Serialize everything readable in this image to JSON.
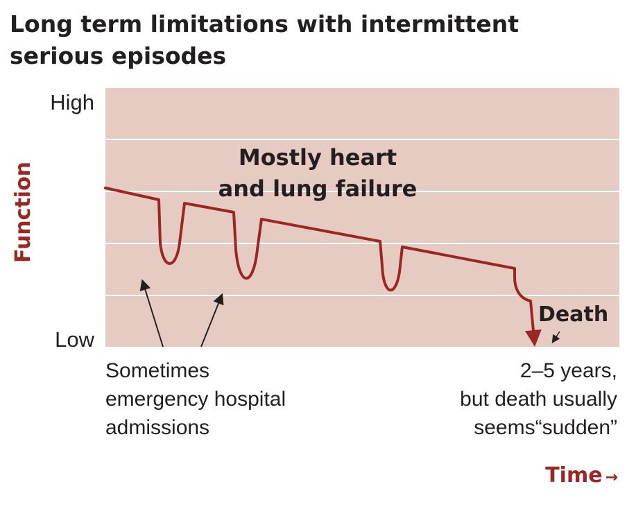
{
  "title": "Long term limitations with intermittent serious episodes",
  "colors": {
    "plot_background": "#e6cbc2",
    "trajectory": "#9c2722",
    "grid": "#ffffff",
    "text": "#231f20",
    "axis_label": "#9c2722"
  },
  "chart_data": {
    "type": "line",
    "title": "Long term limitations with intermittent serious episodes",
    "ylabel": "Function",
    "xlabel": "Time",
    "y_ticks": [
      "High",
      "Low"
    ],
    "grid": true,
    "series": [
      {
        "name": "",
        "points": [
          [
            0,
            0.77
          ],
          [
            0.1,
            0.72
          ],
          [
            0.12,
            0.35
          ],
          [
            0.15,
            0.7
          ],
          [
            0.25,
            0.65
          ],
          [
            0.27,
            0.28
          ],
          [
            0.3,
            0.62
          ],
          [
            0.53,
            0.5
          ],
          [
            0.55,
            0.23
          ],
          [
            0.58,
            0.48
          ],
          [
            0.79,
            0.35
          ],
          [
            0.82,
            0.18
          ],
          [
            0.85,
            0.0
          ]
        ]
      }
    ],
    "annotations": {
      "condition": "Mostly heart and lung failure",
      "death": "Death",
      "admissions": "Sometimes emergency hospital admissions",
      "duration": "2–5 years, but death usually seems“sudden”"
    }
  },
  "labels": {
    "condition_line1": "Mostly heart",
    "condition_line2": "and lung failure",
    "death": "Death",
    "y_high": "High",
    "y_low": "Low",
    "y_axis": "Function",
    "x_axis": "Time",
    "x_arrow": "→",
    "caption_left_1": "Sometimes",
    "caption_left_2": "emergency hospital",
    "caption_left_3": "admissions",
    "caption_right_1": "2–5 years,",
    "caption_right_2": "but death usually",
    "caption_right_3": "seems“sudden”"
  }
}
